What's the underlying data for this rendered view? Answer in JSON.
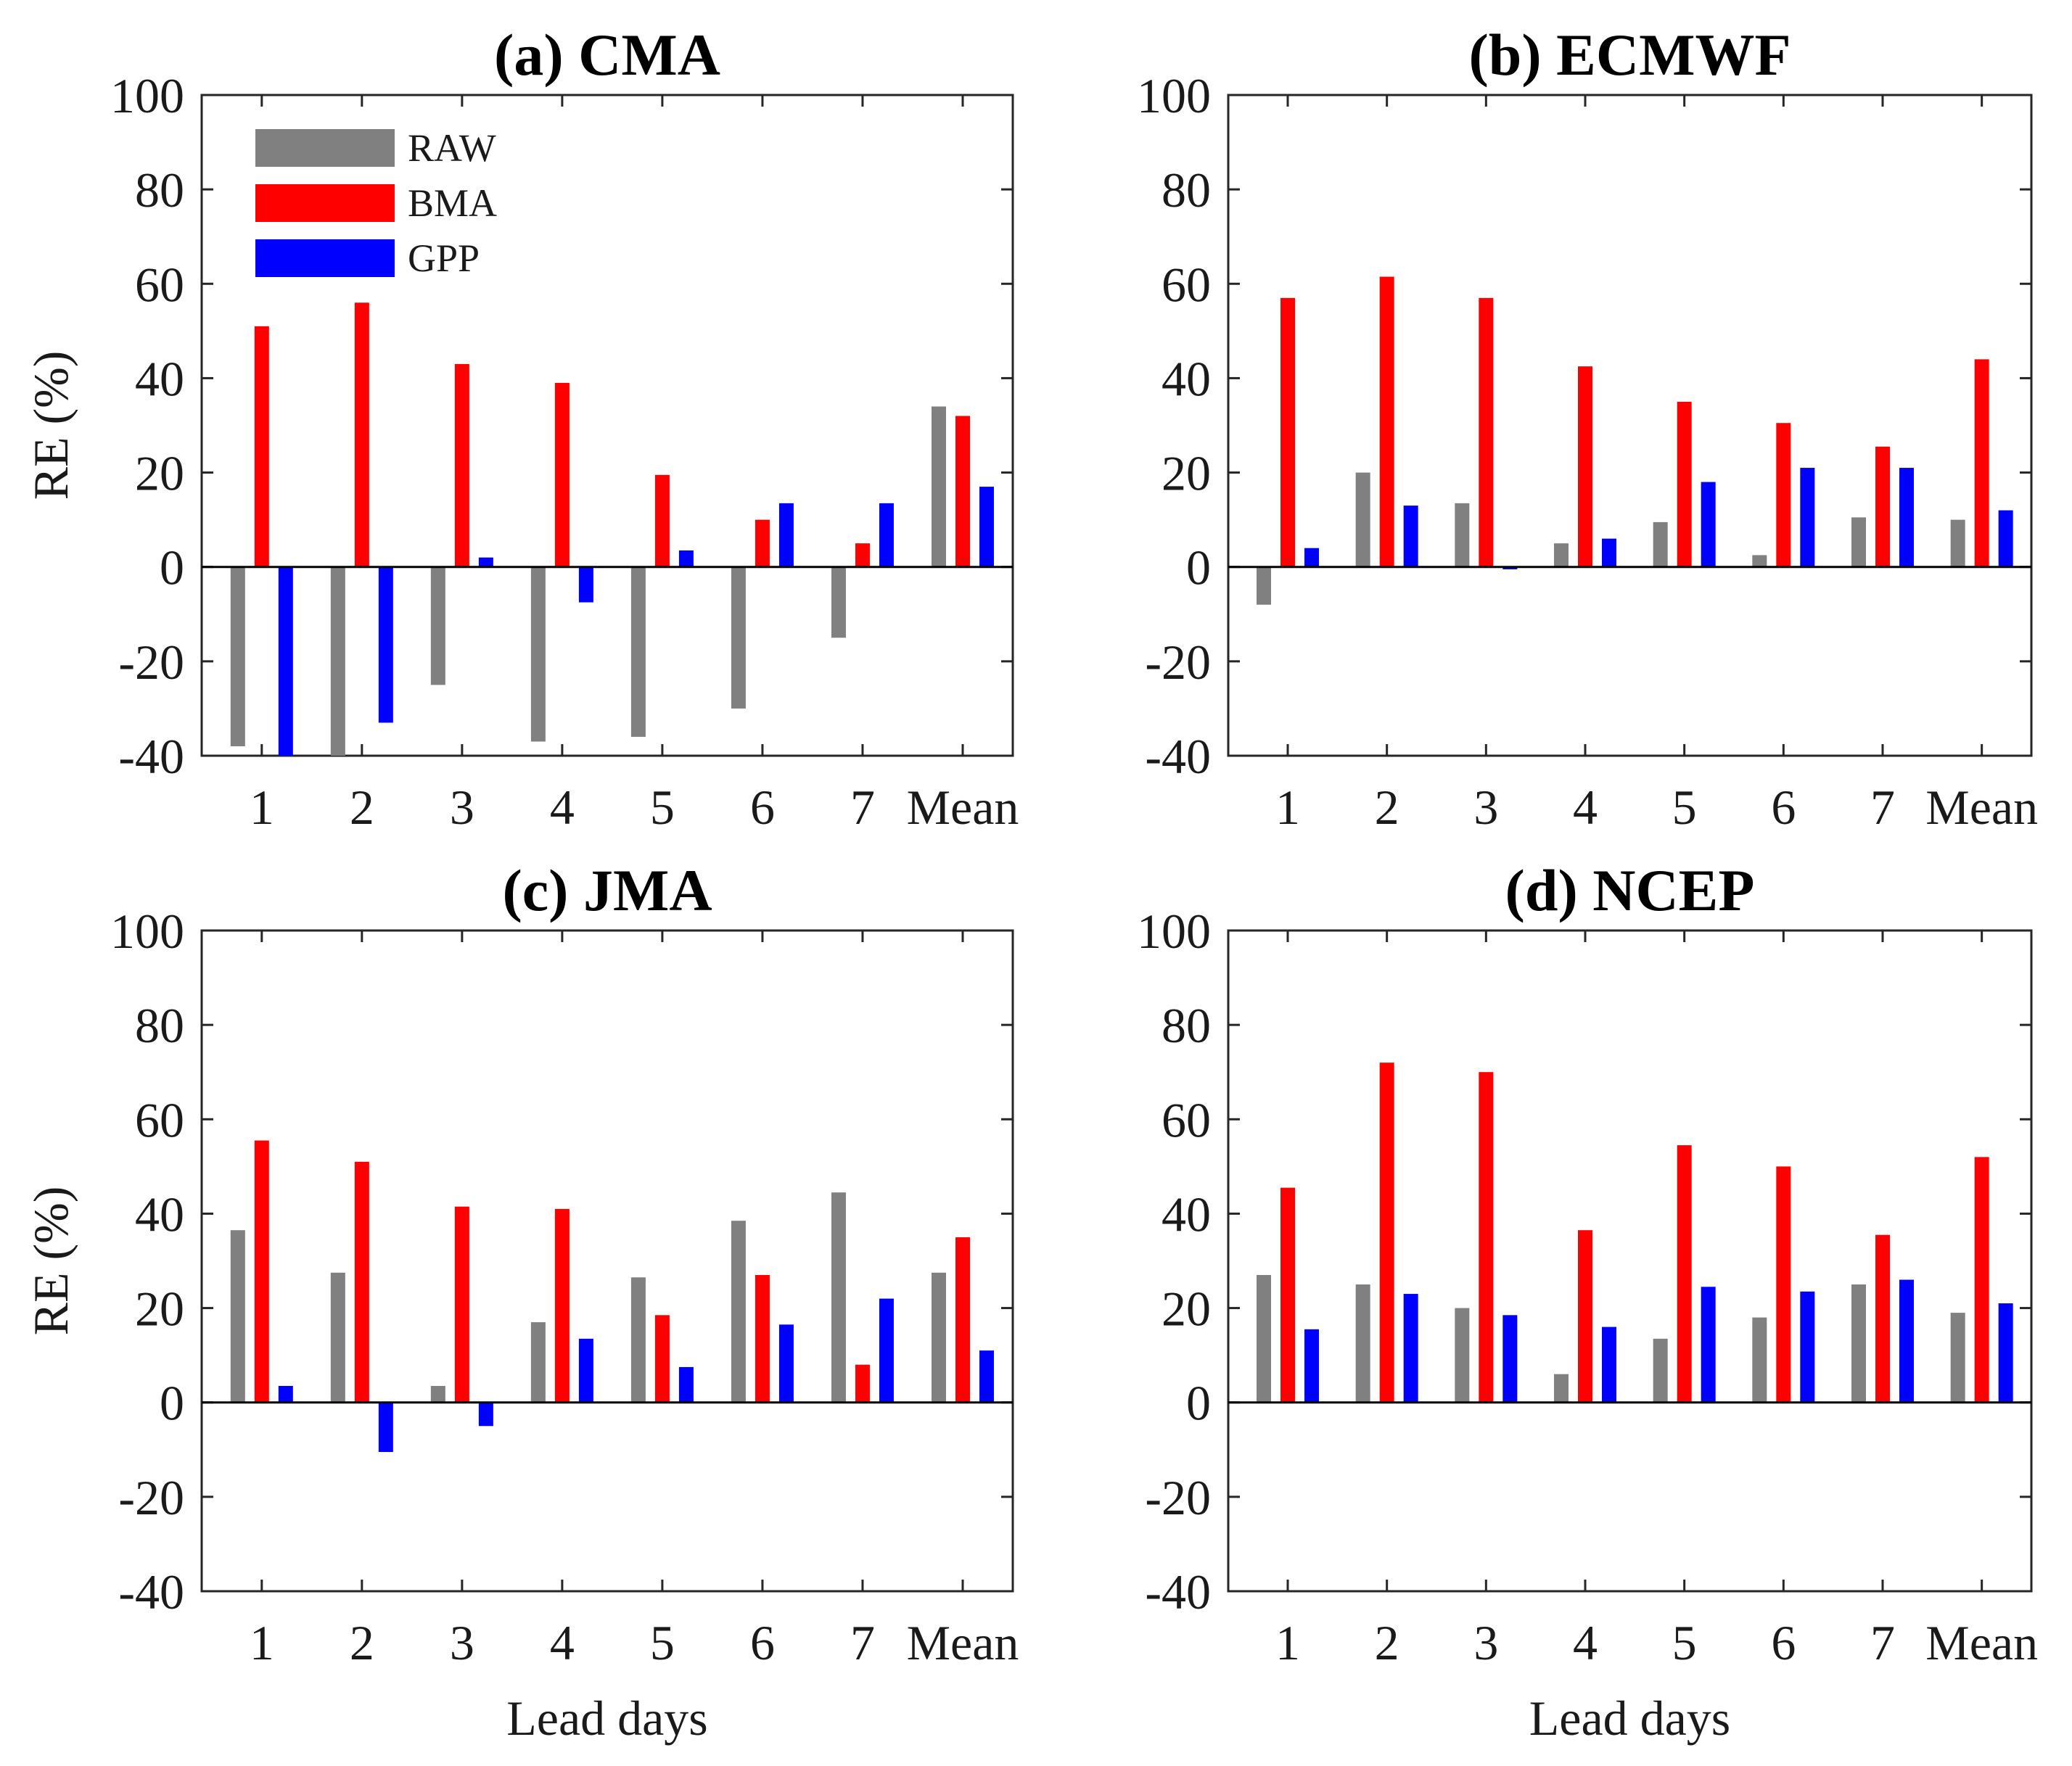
{
  "figure": {
    "y_axis_label": "RE (%)",
    "x_axis_label": "Lead days"
  },
  "legend": [
    {
      "name": "RAW",
      "color": "#808080"
    },
    {
      "name": "BMA",
      "color": "#ff0000"
    },
    {
      "name": "GPP",
      "color": "#0000ff"
    }
  ],
  "chart_data": [
    {
      "type": "bar",
      "title": "(a) CMA",
      "categories": [
        "1",
        "2",
        "3",
        "4",
        "5",
        "6",
        "7",
        "Mean"
      ],
      "ylim": [
        -40,
        100
      ],
      "yticks": [
        -40,
        -20,
        0,
        20,
        40,
        60,
        80,
        100
      ],
      "ylabel": "RE (%)",
      "xlabel": "",
      "legend_position": "top-left",
      "series": [
        {
          "name": "RAW",
          "values": [
            -38,
            -40,
            -25,
            -37,
            -36,
            -30,
            -15,
            34
          ]
        },
        {
          "name": "BMA",
          "values": [
            51,
            56,
            43,
            39,
            19.5,
            10,
            5,
            32
          ]
        },
        {
          "name": "GPP",
          "values": [
            -40,
            -33,
            2,
            -7.5,
            3.5,
            13.5,
            13.5,
            17
          ]
        }
      ]
    },
    {
      "type": "bar",
      "title": "(b) ECMWF",
      "categories": [
        "1",
        "2",
        "3",
        "4",
        "5",
        "6",
        "7",
        "Mean"
      ],
      "ylim": [
        -40,
        100
      ],
      "yticks": [
        -40,
        -20,
        0,
        20,
        40,
        60,
        80,
        100
      ],
      "ylabel": "",
      "xlabel": "",
      "series": [
        {
          "name": "RAW",
          "values": [
            -8,
            20,
            13.5,
            5,
            9.5,
            2.5,
            10.5,
            10
          ]
        },
        {
          "name": "BMA",
          "values": [
            57,
            61.5,
            57,
            42.5,
            35,
            30.5,
            25.5,
            44
          ]
        },
        {
          "name": "GPP",
          "values": [
            4,
            13,
            -0.5,
            6,
            18,
            21,
            21,
            12
          ]
        }
      ]
    },
    {
      "type": "bar",
      "title": "(c) JMA",
      "categories": [
        "1",
        "2",
        "3",
        "4",
        "5",
        "6",
        "7",
        "Mean"
      ],
      "ylim": [
        -40,
        100
      ],
      "yticks": [
        -40,
        -20,
        0,
        20,
        40,
        60,
        80,
        100
      ],
      "ylabel": "RE (%)",
      "xlabel": "Lead days",
      "series": [
        {
          "name": "RAW",
          "values": [
            36.5,
            27.5,
            3.5,
            17,
            26.5,
            38.5,
            44.5,
            27.5
          ]
        },
        {
          "name": "BMA",
          "values": [
            55.5,
            51,
            41.5,
            41,
            18.5,
            27,
            8,
            35
          ]
        },
        {
          "name": "GPP",
          "values": [
            3.5,
            -10.5,
            -5,
            13.5,
            7.5,
            16.5,
            22,
            11
          ]
        }
      ]
    },
    {
      "type": "bar",
      "title": "(d) NCEP",
      "categories": [
        "1",
        "2",
        "3",
        "4",
        "5",
        "6",
        "7",
        "Mean"
      ],
      "ylim": [
        -40,
        100
      ],
      "yticks": [
        -40,
        -20,
        0,
        20,
        40,
        60,
        80,
        100
      ],
      "ylabel": "",
      "xlabel": "Lead days",
      "series": [
        {
          "name": "RAW",
          "values": [
            27,
            25,
            20,
            6,
            13.5,
            18,
            25,
            19
          ]
        },
        {
          "name": "BMA",
          "values": [
            45.5,
            72,
            70,
            36.5,
            54.5,
            50,
            35.5,
            52
          ]
        },
        {
          "name": "GPP",
          "values": [
            15.5,
            23,
            18.5,
            16,
            24.5,
            23.5,
            26,
            21
          ]
        }
      ]
    }
  ]
}
